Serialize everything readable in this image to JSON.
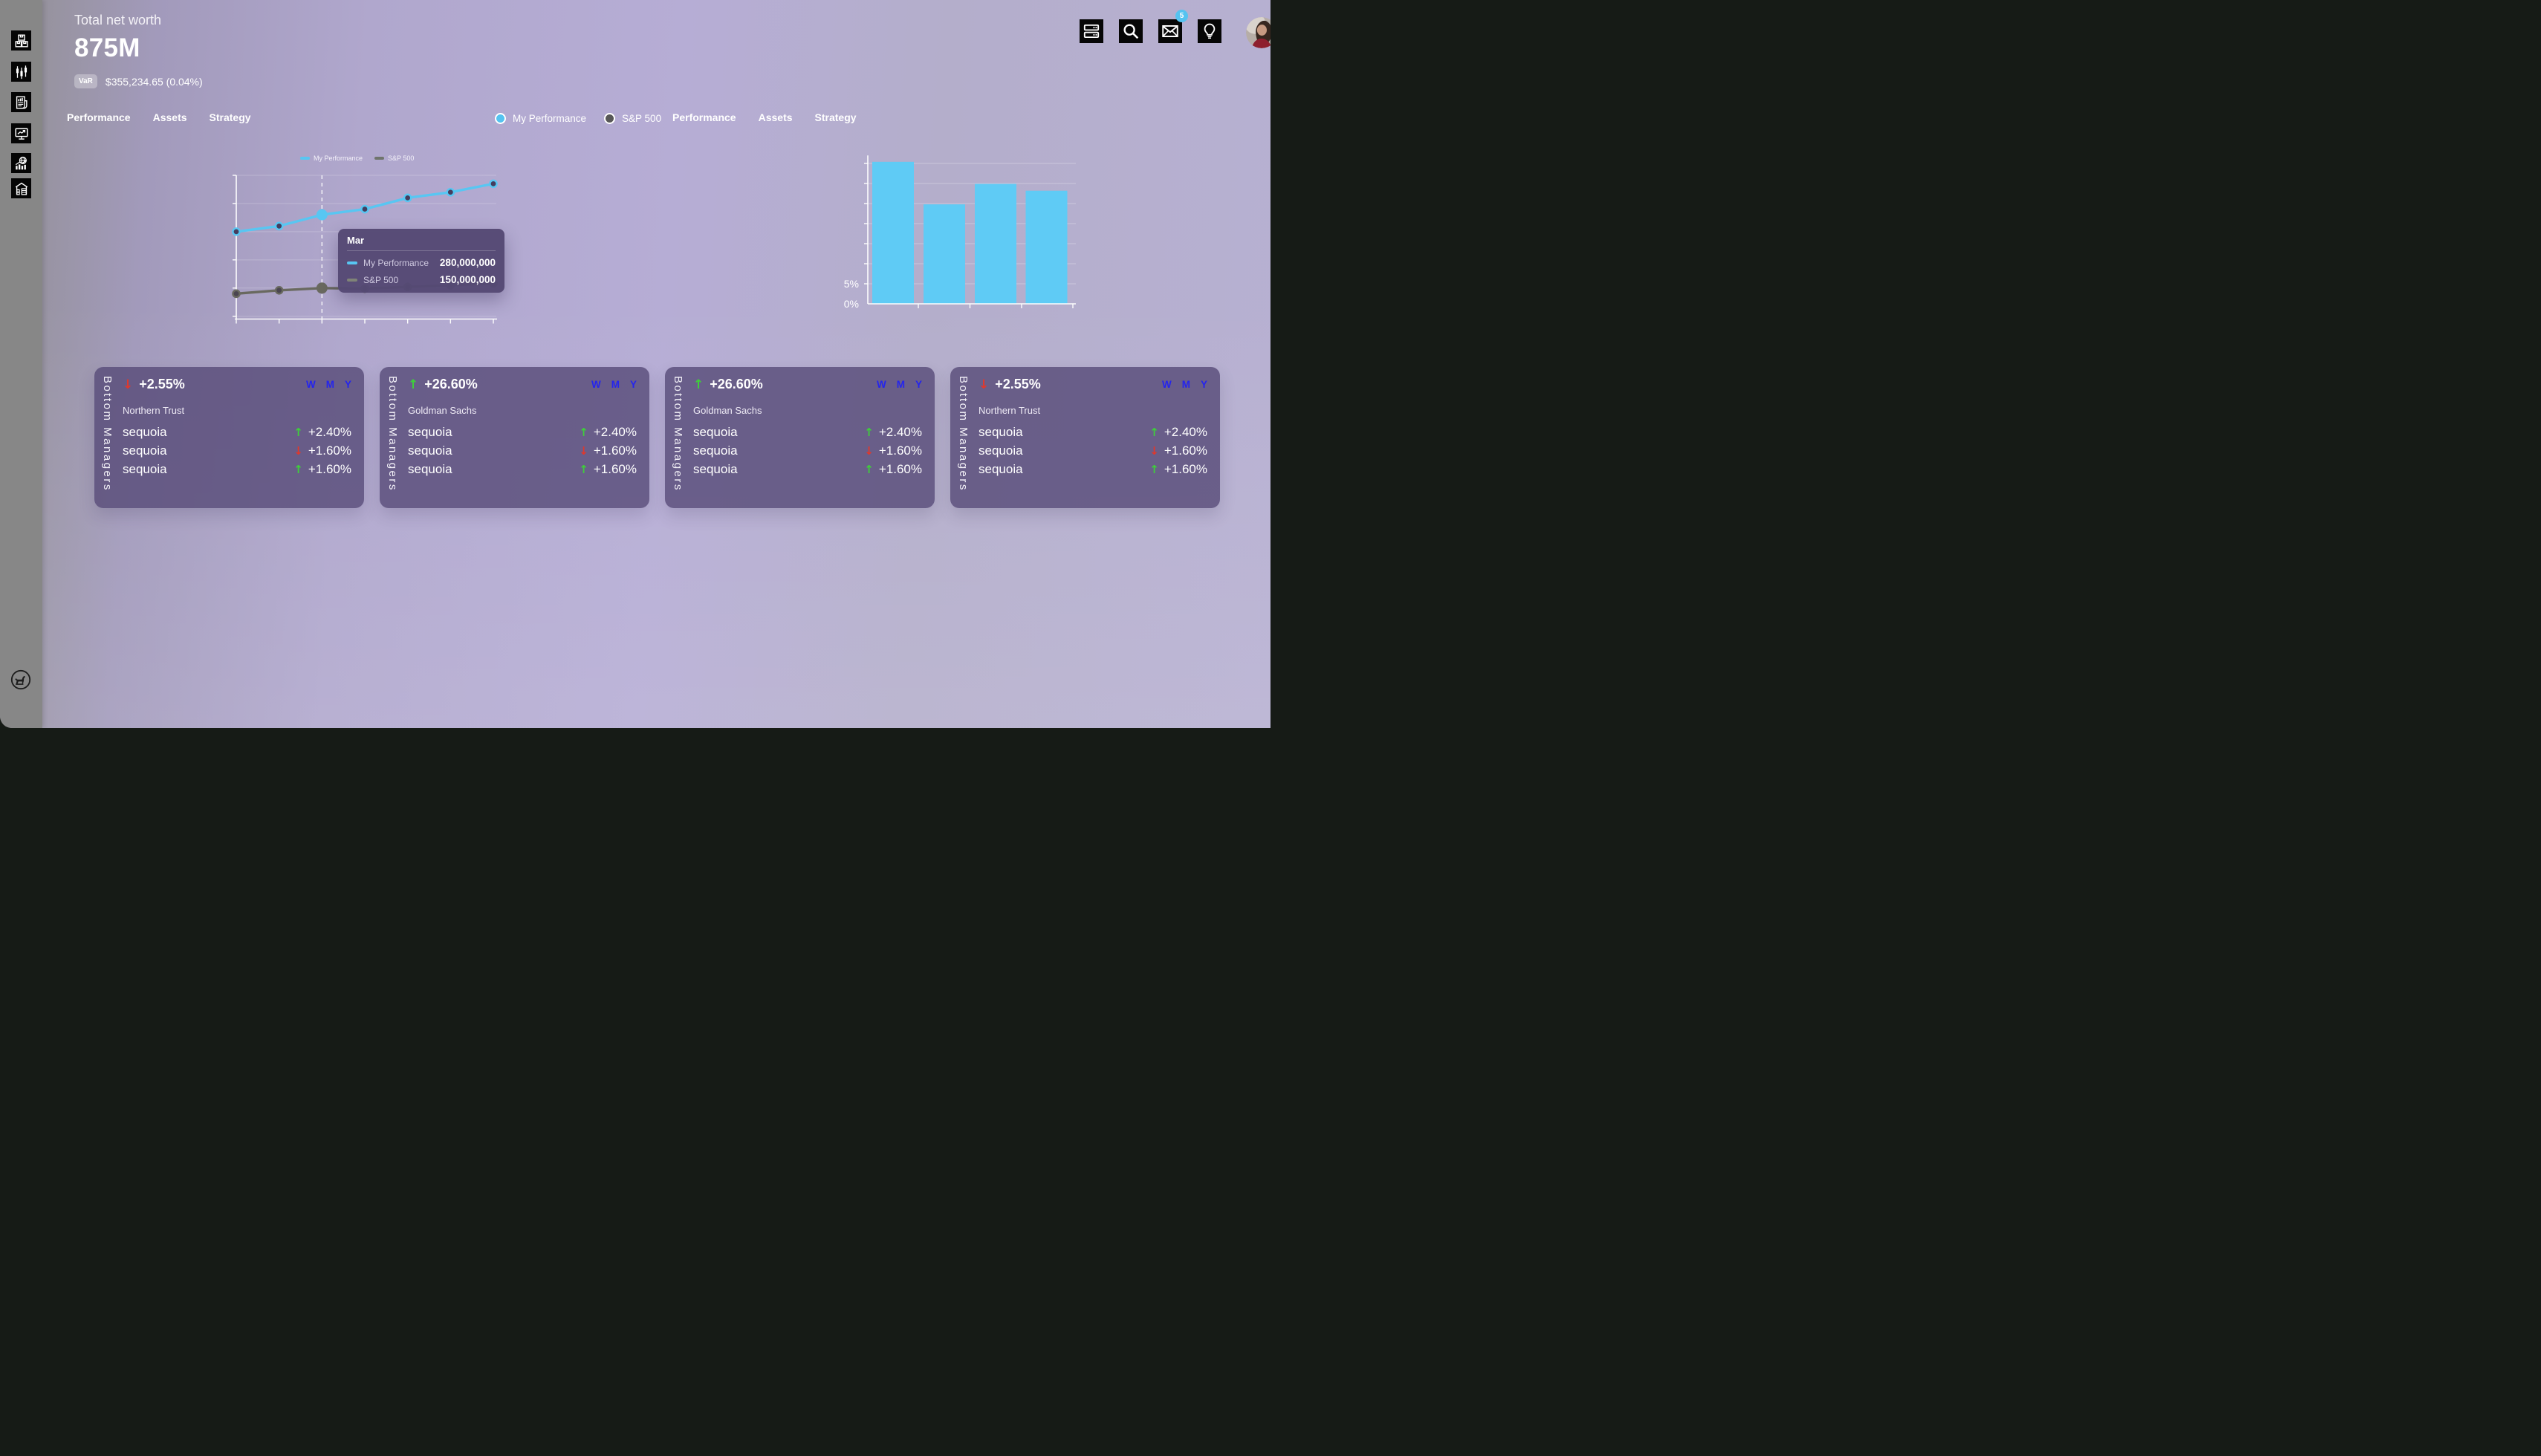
{
  "header": {
    "total_label": "Total net worth",
    "total_value": "875M",
    "var_badge": "VaR",
    "var_value": "$355,234.65 (0.04%)"
  },
  "topbar": {
    "icons": [
      {
        "name": "server-icon"
      },
      {
        "name": "search-icon"
      },
      {
        "name": "mail-icon",
        "badge": "5"
      },
      {
        "name": "lightbulb-icon"
      }
    ],
    "avatar": "user-avatar"
  },
  "sidebar": {
    "icons": [
      "packages-icon",
      "candlestick-chart-icon",
      "report-icon",
      "monitor-chart-icon",
      "global-stats-icon",
      "warehouse-icon"
    ],
    "logo": "dog-logo-icon"
  },
  "tabs_left": [
    "Performance",
    "Assets",
    "Strategy"
  ],
  "tabs_right": [
    "Performance",
    "Assets",
    "Strategy"
  ],
  "series_toggle": [
    {
      "label": "My Performance",
      "color": "#55c3f0"
    },
    {
      "label": "S&P 500",
      "color": "#575757"
    }
  ],
  "chart_data": [
    {
      "type": "line",
      "x": [
        "Jan",
        "Feb",
        "Mar",
        "Apr",
        "May",
        "Jun",
        "Jul"
      ],
      "series": [
        {
          "name": "My Performance",
          "color": "#58c6f2",
          "values": [
            250000000,
            260000000,
            280000000,
            290000000,
            310000000,
            320000000,
            335000000
          ]
        },
        {
          "name": "S&P 500",
          "color": "#69695f",
          "values": [
            140000000,
            146000000,
            150000000,
            149000000,
            152000000,
            155000000,
            158000000
          ]
        }
      ],
      "ylim": [
        95000000,
        350000000
      ],
      "grid_step": 50000000,
      "highlight_index": 2,
      "legend_position": "top",
      "grid": true,
      "tooltip": {
        "title": "Mar",
        "rows": [
          {
            "name": "My Performance",
            "value": "280,000,000",
            "color": "#58c6f2"
          },
          {
            "name": "S&P 500",
            "value": "150,000,000",
            "color": "#7f8377"
          }
        ]
      }
    },
    {
      "type": "bar",
      "categories": [
        "",
        "",
        "",
        ""
      ],
      "values": [
        35.4,
        24.8,
        29.9,
        28.2
      ],
      "unit": "%",
      "bar_color": "#5fcbf5",
      "ylim": [
        0,
        35
      ],
      "tick_step": 5,
      "visible_tick_labels": [
        "5%",
        "0%"
      ],
      "grid": true
    }
  ],
  "cards": [
    {
      "side_label": "Bottom Managers",
      "change": "+2.55%",
      "direction": "down",
      "ranges": [
        "W",
        "M",
        "Y"
      ],
      "manager": "Northern Trust",
      "rows": [
        {
          "name": "sequoia",
          "change": "+2.40%",
          "direction": "up"
        },
        {
          "name": "sequoia",
          "change": "+1.60%",
          "direction": "down"
        },
        {
          "name": "sequoia",
          "change": "+1.60%",
          "direction": "up"
        }
      ]
    },
    {
      "side_label": "Bottom Managers",
      "change": "+26.60%",
      "direction": "up",
      "ranges": [
        "W",
        "M",
        "Y"
      ],
      "manager": "Goldman Sachs",
      "rows": [
        {
          "name": "sequoia",
          "change": "+2.40%",
          "direction": "up"
        },
        {
          "name": "sequoia",
          "change": "+1.60%",
          "direction": "down"
        },
        {
          "name": "sequoia",
          "change": "+1.60%",
          "direction": "up"
        }
      ]
    },
    {
      "side_label": "Bottom Managers",
      "change": "+26.60%",
      "direction": "up",
      "ranges": [
        "W",
        "M",
        "Y"
      ],
      "manager": "Goldman Sachs",
      "rows": [
        {
          "name": "sequoia",
          "change": "+2.40%",
          "direction": "up"
        },
        {
          "name": "sequoia",
          "change": "+1.60%",
          "direction": "down"
        },
        {
          "name": "sequoia",
          "change": "+1.60%",
          "direction": "up"
        }
      ]
    },
    {
      "side_label": "Bottom Managers",
      "change": "+2.55%",
      "direction": "down",
      "ranges": [
        "W",
        "M",
        "Y"
      ],
      "manager": "Northern Trust",
      "rows": [
        {
          "name": "sequoia",
          "change": "+2.40%",
          "direction": "up"
        },
        {
          "name": "sequoia",
          "change": "+1.60%",
          "direction": "down"
        },
        {
          "name": "sequoia",
          "change": "+1.60%",
          "direction": "up"
        }
      ]
    }
  ],
  "colors": {
    "up": "#3ecf3a",
    "down": "#e0382c",
    "range_button": "#2424ee",
    "accent_blue": "#58c6f2",
    "card_bg": "#685f86",
    "tooltip_bg": "#55496f"
  }
}
